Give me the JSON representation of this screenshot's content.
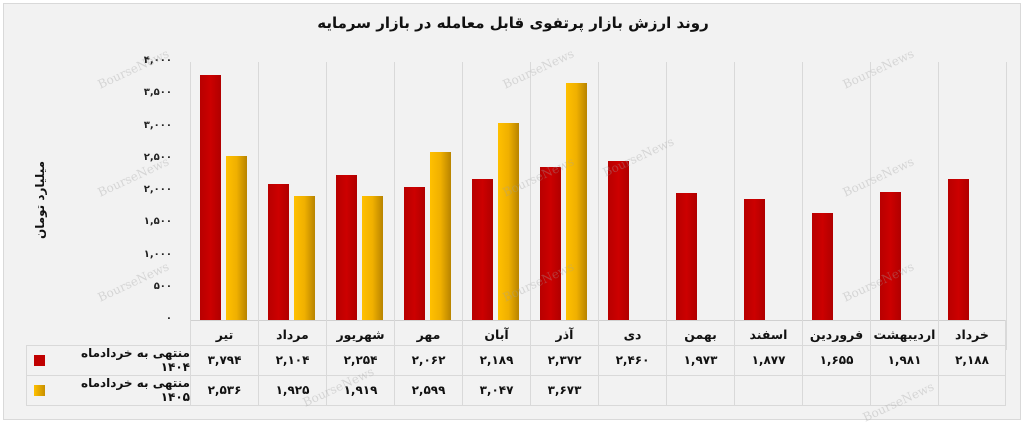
{
  "title": "روند ارزش بازار پرتفوی قابل معامله در بازار سرمایه",
  "y_axis_label": "میلیارد تومان",
  "watermark": "BourseNews",
  "y_ticks": [
    "۴,۰۰۰",
    "۳,۵۰۰",
    "۳,۰۰۰",
    "۲,۵۰۰",
    "۲,۰۰۰",
    "۱,۵۰۰",
    "۱,۰۰۰",
    "۵۰۰",
    "۰"
  ],
  "categories": [
    "تیر",
    "مرداد",
    "شهریور",
    "مهر",
    "آبان",
    "آذر",
    "دی",
    "بهمن",
    "اسفند",
    "فروردین",
    "اردیبهشت",
    "خرداد"
  ],
  "legend": {
    "series1": "منتهی به خردادماه ۱۴۰۴",
    "series2": "منتهی به خردادماه ۱۴۰۵"
  },
  "table": {
    "series1": [
      "۳,۷۹۴",
      "۲,۱۰۴",
      "۲,۲۵۴",
      "۲,۰۶۲",
      "۲,۱۸۹",
      "۲,۳۷۲",
      "۲,۴۶۰",
      "۱,۹۷۳",
      "۱,۸۷۷",
      "۱,۶۵۵",
      "۱,۹۸۱",
      "۲,۱۸۸"
    ],
    "series2": [
      "۲,۵۳۶",
      "۱,۹۲۵",
      "۱,۹۱۹",
      "۲,۵۹۹",
      "۳,۰۴۷",
      "۳,۶۷۳",
      "",
      "",
      "",
      "",
      "",
      ""
    ]
  },
  "colors": {
    "series1": "#c00000",
    "series2": "#f5b800",
    "background": "#f2f2f2",
    "grid": "#d9d9d9"
  },
  "chart_data": {
    "type": "bar",
    "title": "روند ارزش بازار پرتفوی قابل معامله در بازار سرمایه",
    "xlabel": "",
    "ylabel": "میلیارد تومان",
    "ylim": [
      0,
      4000
    ],
    "y_ticks": [
      0,
      500,
      1000,
      1500,
      2000,
      2500,
      3000,
      3500,
      4000
    ],
    "grid": "vertical category separators",
    "legend_position": "data table (bottom-left)",
    "categories": [
      "تیر",
      "مرداد",
      "شهریور",
      "مهر",
      "آبان",
      "آذر",
      "دی",
      "بهمن",
      "اسفند",
      "فروردین",
      "اردیبهشت",
      "خرداد"
    ],
    "series": [
      {
        "name": "منتهی به خردادماه ۱۴۰۴",
        "color": "#c00000",
        "values": [
          3794,
          2104,
          2254,
          2062,
          2189,
          2372,
          2460,
          1973,
          1877,
          1655,
          1981,
          2188
        ]
      },
      {
        "name": "منتهی به خردادماه ۱۴۰۵",
        "color": "#f5b800",
        "values": [
          2536,
          1925,
          1919,
          2599,
          3047,
          3673,
          null,
          null,
          null,
          null,
          null,
          null
        ]
      }
    ]
  }
}
